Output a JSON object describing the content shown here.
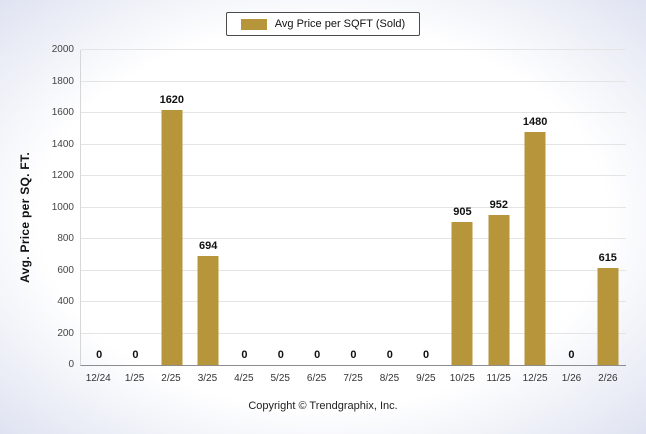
{
  "legend": {
    "label": "Avg Price per SQFT (Sold)",
    "swatch_color": "#B6953B"
  },
  "footer": {
    "copyright": "Copyright © Trendgraphix, Inc."
  },
  "chart_data": {
    "type": "bar",
    "title": "",
    "categories": [
      "12/24",
      "1/25",
      "2/25",
      "3/25",
      "4/25",
      "5/25",
      "6/25",
      "7/25",
      "8/25",
      "9/25",
      "10/25",
      "11/25",
      "12/25",
      "1/26",
      "2/26"
    ],
    "values": [
      0,
      0,
      1620,
      694,
      0,
      0,
      0,
      0,
      0,
      0,
      905,
      952,
      1480,
      0,
      615
    ],
    "xlabel": "",
    "ylabel": "Avg. Price per SQ. FT.",
    "ylim": [
      0,
      2000
    ],
    "ytick_step": 200,
    "bar_color": "#B6953B",
    "grid": true,
    "legend_position": "top",
    "series_name": "Avg Price per SQFT (Sold)"
  }
}
